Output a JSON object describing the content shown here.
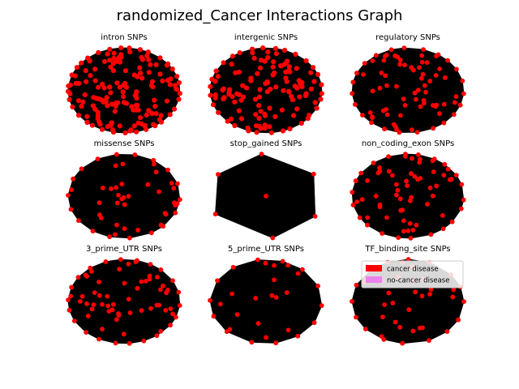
{
  "chart_data": {
    "type": "scatter",
    "title": "randomized_Cancer Interactions Graph",
    "layout": "3x3 grid of network graph panels; black edges, red nodes",
    "colors": {
      "background": "#ffffff",
      "edges": "#000000",
      "cancer_node": "#ff0000",
      "no_cancer_node": "#ee82ee"
    },
    "legend": {
      "placement": "top-right of bottom-right panel",
      "entries": [
        {
          "label": "cancer disease",
          "color": "#ff0000"
        },
        {
          "label": "no-cancer disease",
          "color": "#ee82ee"
        }
      ]
    },
    "panels": [
      {
        "title": "intron SNPs",
        "nodes": 160,
        "density": "dense"
      },
      {
        "title": "intergenic SNPs",
        "nodes": 130,
        "density": "dense"
      },
      {
        "title": "regulatory SNPs",
        "nodes": 80,
        "density": "medium"
      },
      {
        "title": "missense SNPs",
        "nodes": 50,
        "density": "medium"
      },
      {
        "title": "stop_gained SNPs",
        "nodes": 7,
        "density": "sparse"
      },
      {
        "title": "non_coding_exon SNPs",
        "nodes": 70,
        "density": "medium"
      },
      {
        "title": "3_prime_UTR SNPs",
        "nodes": 70,
        "density": "medium"
      },
      {
        "title": "5_prime_UTR SNPs",
        "nodes": 30,
        "density": "sparse"
      },
      {
        "title": "TF_binding_site SNPs",
        "nodes": 40,
        "density": "sparse"
      }
    ]
  }
}
